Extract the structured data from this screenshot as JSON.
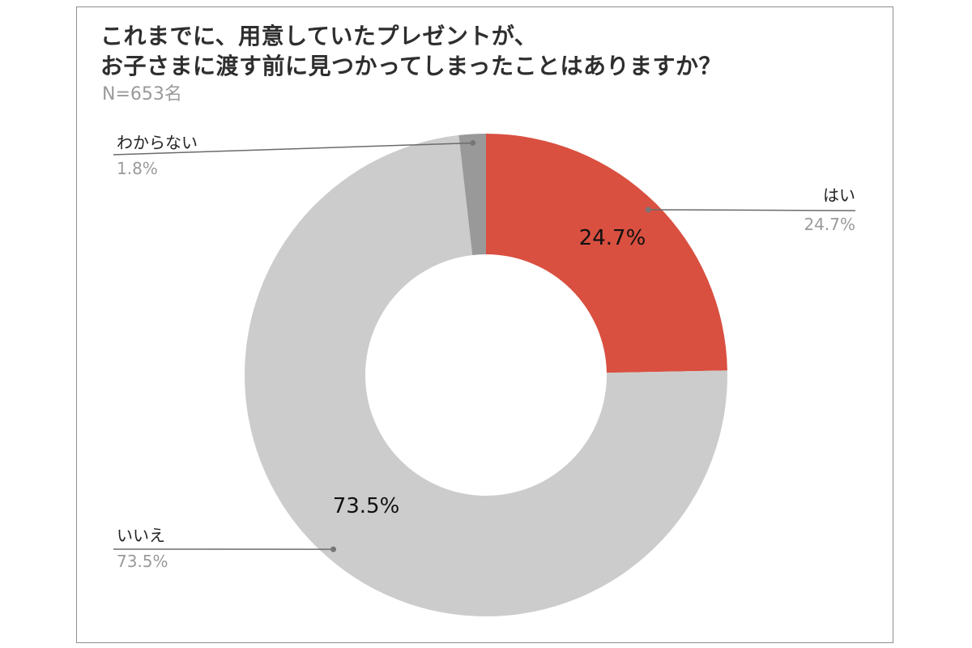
{
  "title_line1": "これまでに、用意していたプレゼントが、",
  "title_line2": "お子さまに渡す前に見つかってしまったことはありますか？",
  "subtitle": "N=653名",
  "chart_data": {
    "type": "pie",
    "donut": true,
    "title": "これまでに、用意していたプレゼントが、お子さまに渡す前に見つかってしまったことはありますか？",
    "subtitle": "N=653名",
    "categories": [
      "はい",
      "いいえ",
      "わからない"
    ],
    "values": [
      24.7,
      73.5,
      1.8
    ],
    "value_labels": [
      "24.7%",
      "73.5%",
      "1.8%"
    ],
    "inner_labels": [
      "24.7%",
      "73.5%",
      ""
    ],
    "colors": [
      "#d95040",
      "#cccccc",
      "#999999"
    ],
    "start": "12 o'clock",
    "direction": "clockwise",
    "legend": "callouts"
  }
}
